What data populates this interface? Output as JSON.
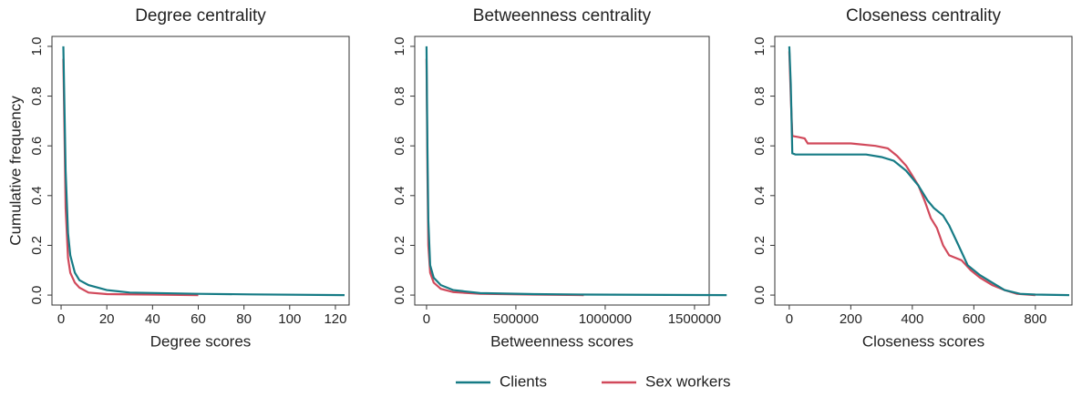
{
  "chart_data": [
    {
      "type": "line",
      "title": "Degree centrality",
      "x_label": "Degree scores",
      "y_label": "Cumulative frequency",
      "xlim": [
        -4,
        126
      ],
      "xticks": [
        0,
        20,
        40,
        60,
        80,
        100,
        120
      ],
      "ylim": [
        -0.04,
        1.04
      ],
      "yticks": [
        {
          "value": 0,
          "label": "0.0"
        },
        0.2,
        0.4,
        0.6,
        0.8,
        {
          "value": 1,
          "label": "1.0"
        }
      ],
      "series": [
        {
          "name": "Clients",
          "color": "#167b85",
          "x": [
            1,
            2,
            3,
            4,
            6,
            8,
            12,
            20,
            30,
            60,
            83,
            124
          ],
          "values": [
            1.0,
            0.5,
            0.25,
            0.16,
            0.09,
            0.06,
            0.04,
            0.02,
            0.01,
            0.005,
            0.003,
            0
          ]
        },
        {
          "name": "Sex workers",
          "color": "#d1495b",
          "x": [
            1,
            2,
            3,
            4,
            6,
            8,
            12,
            20,
            40,
            60
          ],
          "values": [
            0.95,
            0.35,
            0.15,
            0.09,
            0.05,
            0.03,
            0.01,
            0.004,
            0.002,
            0
          ]
        }
      ]
    },
    {
      "type": "line",
      "title": "Betweenness centrality",
      "x_label": "Betweenness scores",
      "xlim": [
        -66000,
        1582000
      ],
      "xticks": [
        0,
        500000,
        1000000,
        1500000
      ],
      "ylim": [
        -0.04,
        1.04
      ],
      "yticks": [
        {
          "value": 0,
          "label": "0.0"
        },
        0.2,
        0.4,
        0.6,
        0.8,
        {
          "value": 1,
          "label": "1.0"
        }
      ],
      "series": [
        {
          "color": "#167b85",
          "x": [
            0,
            5000,
            10000,
            20000,
            40000,
            80000,
            150000,
            300000,
            600000,
            880000,
            1680000
          ],
          "values": [
            1.0,
            0.6,
            0.3,
            0.12,
            0.07,
            0.04,
            0.02,
            0.008,
            0.004,
            0.002,
            0
          ]
        },
        {
          "color": "#d1495b",
          "x": [
            0,
            5000,
            10000,
            20000,
            40000,
            80000,
            150000,
            300000,
            600000,
            880000
          ],
          "values": [
            0.95,
            0.5,
            0.2,
            0.09,
            0.05,
            0.025,
            0.012,
            0.005,
            0.002,
            0
          ]
        }
      ]
    },
    {
      "type": "line",
      "title": "Closeness centrality",
      "x_label": "Closeness scores",
      "xlim": [
        -47,
        919
      ],
      "xticks": [
        0,
        200,
        400,
        600,
        800
      ],
      "ylim": [
        -0.04,
        1.04
      ],
      "yticks": [
        {
          "value": 0,
          "label": "0.0"
        },
        0.2,
        0.4,
        0.6,
        0.8,
        {
          "value": 1,
          "label": "1.0"
        }
      ],
      "series": [
        {
          "color": "#167b85",
          "x": [
            0,
            5,
            10,
            20,
            100,
            250,
            300,
            340,
            380,
            420,
            450,
            470,
            500,
            520,
            550,
            580,
            620,
            660,
            700,
            750,
            800,
            910
          ],
          "values": [
            1.0,
            0.85,
            0.57,
            0.565,
            0.565,
            0.565,
            0.555,
            0.54,
            0.5,
            0.44,
            0.38,
            0.35,
            0.32,
            0.28,
            0.2,
            0.12,
            0.08,
            0.05,
            0.02,
            0.005,
            0.002,
            0
          ]
        },
        {
          "color": "#d1495b",
          "x": [
            0,
            5,
            10,
            30,
            50,
            60,
            200,
            280,
            320,
            350,
            380,
            400,
            420,
            440,
            460,
            480,
            500,
            520,
            560,
            590,
            620,
            660,
            700,
            740,
            800
          ],
          "values": [
            0.98,
            0.8,
            0.64,
            0.635,
            0.63,
            0.61,
            0.61,
            0.6,
            0.59,
            0.56,
            0.52,
            0.48,
            0.44,
            0.38,
            0.31,
            0.27,
            0.2,
            0.16,
            0.14,
            0.1,
            0.07,
            0.04,
            0.02,
            0.005,
            0
          ]
        }
      ]
    }
  ]
}
